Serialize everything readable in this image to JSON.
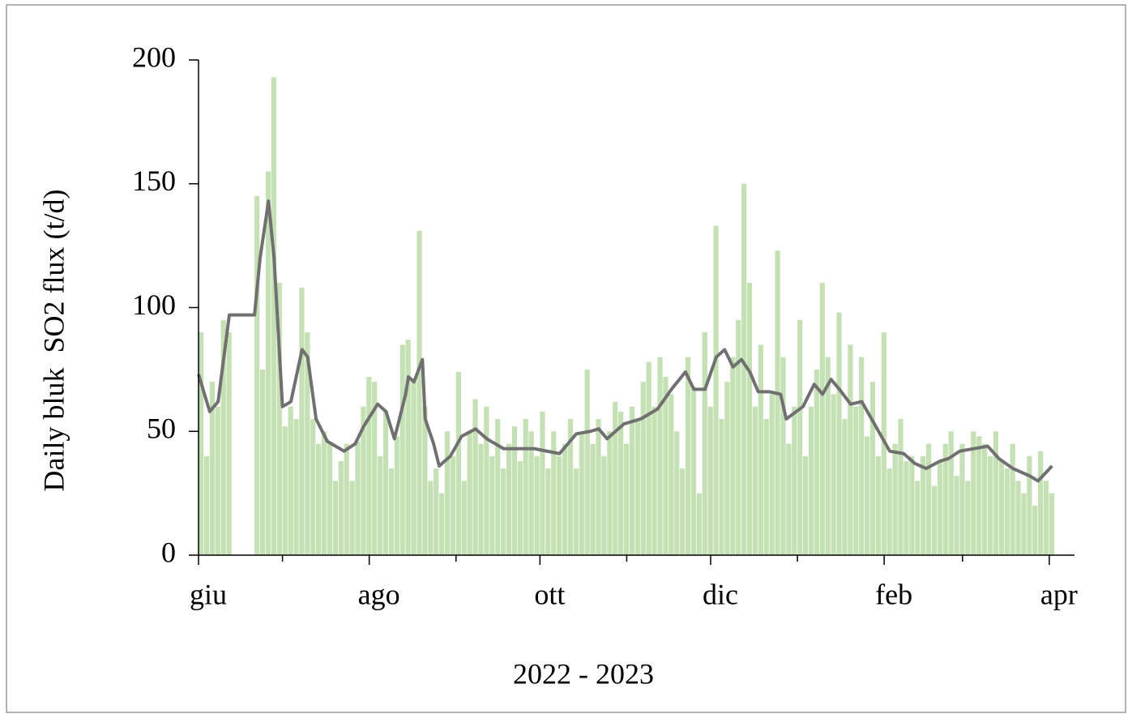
{
  "chart_data": {
    "type": "bar",
    "ylabel": "Daily bluk  SO2 flux (t/d)",
    "xlabel": "2022 - 2023",
    "xlim": [
      0,
      313
    ],
    "xticks": [
      {
        "value": 0,
        "label": "giu"
      },
      {
        "value": 61,
        "label": "ago"
      },
      {
        "value": 122,
        "label": "ott"
      },
      {
        "value": 183,
        "label": "dic"
      },
      {
        "value": 245,
        "label": "feb"
      },
      {
        "value": 304,
        "label": "apr"
      }
    ],
    "xminorticks": [
      30,
      92,
      153,
      214,
      273
    ],
    "ylim": [
      0,
      200
    ],
    "yticks": [
      0,
      50,
      100,
      150,
      200
    ],
    "series": [
      {
        "type": "bar",
        "color": "#c5e0b4",
        "x": [
          0,
          2,
          4,
          6,
          8,
          10,
          12,
          14,
          16,
          18,
          20,
          22,
          24,
          26,
          28,
          30,
          32,
          34,
          36,
          38,
          40,
          42,
          44,
          46,
          48,
          50,
          52,
          54,
          56,
          58,
          60,
          62,
          64,
          66,
          68,
          70,
          72,
          74,
          76,
          78,
          80,
          82,
          84,
          86,
          88,
          90,
          92,
          94,
          96,
          98,
          100,
          102,
          104,
          106,
          108,
          110,
          112,
          114,
          116,
          118,
          120,
          122,
          124,
          126,
          128,
          130,
          132,
          134,
          136,
          138,
          140,
          142,
          144,
          146,
          148,
          150,
          152,
          154,
          156,
          158,
          160,
          162,
          164,
          166,
          168,
          170,
          172,
          174,
          176,
          178,
          180,
          182,
          184,
          186,
          188,
          190,
          192,
          194,
          196,
          198,
          200,
          202,
          204,
          206,
          208,
          210,
          212,
          214,
          216,
          218,
          220,
          222,
          224,
          226,
          228,
          230,
          232,
          234,
          236,
          238,
          240,
          242,
          244,
          246,
          248,
          250,
          252,
          254,
          256,
          258,
          260,
          262,
          264,
          266,
          268,
          270,
          272,
          274,
          276,
          278,
          280,
          282,
          284,
          286,
          288,
          290,
          292,
          294,
          296,
          298,
          300,
          302,
          304
        ],
        "values": [
          90,
          40,
          70,
          60,
          95,
          90,
          null,
          null,
          null,
          null,
          145,
          75,
          155,
          193,
          110,
          52,
          60,
          55,
          108,
          90,
          55,
          45,
          50,
          45,
          30,
          38,
          45,
          30,
          46,
          60,
          72,
          70,
          40,
          58,
          35,
          48,
          85,
          87,
          70,
          131,
          60,
          30,
          35,
          25,
          50,
          40,
          74,
          30,
          50,
          63,
          45,
          60,
          40,
          55,
          35,
          45,
          52,
          38,
          55,
          50,
          40,
          58,
          35,
          50,
          40,
          45,
          55,
          35,
          50,
          75,
          45,
          55,
          40,
          50,
          62,
          58,
          45,
          60,
          55,
          70,
          78,
          60,
          80,
          72,
          65,
          50,
          35,
          80,
          68,
          25,
          90,
          60,
          133,
          55,
          70,
          80,
          95,
          150,
          110,
          60,
          85,
          55,
          65,
          123,
          80,
          45,
          60,
          95,
          40,
          60,
          75,
          110,
          80,
          65,
          98,
          55,
          85,
          60,
          80,
          48,
          70,
          40,
          90,
          35,
          45,
          55,
          38,
          40,
          30,
          40,
          45,
          28,
          38,
          45,
          50,
          32,
          45,
          30,
          50,
          48,
          45,
          40,
          50,
          38,
          35,
          45,
          30,
          25,
          40,
          20,
          42,
          30,
          25
        ]
      },
      {
        "type": "line",
        "color": "#707070",
        "x": [
          0,
          4,
          7,
          11,
          20,
          22,
          25,
          27,
          30,
          33,
          37,
          39,
          42,
          46,
          52,
          56,
          59,
          64,
          67,
          70,
          74,
          75,
          77,
          80,
          81,
          84,
          86,
          90,
          94,
          99,
          103,
          109,
          114,
          120,
          129,
          135,
          140,
          143,
          146,
          152,
          158,
          164,
          169,
          174,
          177,
          181,
          185,
          188,
          191,
          194,
          197,
          200,
          204,
          208,
          210,
          216,
          220,
          223,
          226,
          229,
          233,
          237,
          242,
          247,
          252,
          256,
          260,
          265,
          268,
          272,
          282,
          286,
          291,
          297,
          300,
          305
        ],
        "values": [
          73,
          58,
          62,
          97,
          97,
          120,
          143,
          120,
          60,
          62,
          83,
          80,
          55,
          46,
          42,
          45,
          52,
          61,
          58,
          47,
          65,
          72,
          70,
          79,
          55,
          45,
          36,
          40,
          48,
          51,
          47,
          43,
          43,
          43,
          41,
          49,
          50,
          51,
          47,
          53,
          55,
          59,
          67,
          74,
          67,
          67,
          80,
          83,
          76,
          79,
          74,
          66,
          66,
          65,
          55,
          60,
          69,
          65,
          71,
          67,
          61,
          62,
          52,
          42,
          41,
          37,
          35,
          38,
          39,
          42,
          44,
          39,
          35,
          32,
          30,
          36
        ]
      }
    ]
  }
}
